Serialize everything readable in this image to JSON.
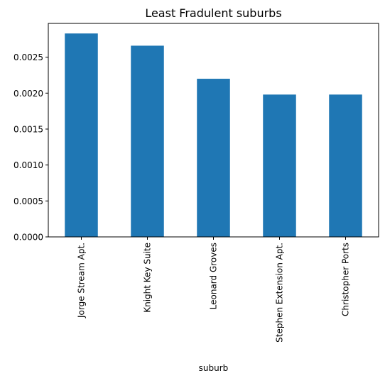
{
  "chart_data": {
    "type": "bar",
    "title": "Least Fradulent suburbs",
    "xlabel": "suburb",
    "ylabel": "",
    "categories": [
      "Jorge Stream Apt.",
      "Knight Key Suite",
      "Leonard Groves",
      "Stephen Extension Apt.",
      "Christopher Ports"
    ],
    "values": [
      0.00283,
      0.00266,
      0.0022,
      0.00198,
      0.00198
    ],
    "ylim": [
      0,
      0.00297
    ],
    "yticks": [
      0.0,
      0.0005,
      0.001,
      0.0015,
      0.002,
      0.0025
    ],
    "ytick_labels": [
      "0.0000",
      "0.0005",
      "0.0010",
      "0.0015",
      "0.0020",
      "0.0025"
    ],
    "bar_color": "#1f77b4",
    "grid": false,
    "legend": "none"
  }
}
